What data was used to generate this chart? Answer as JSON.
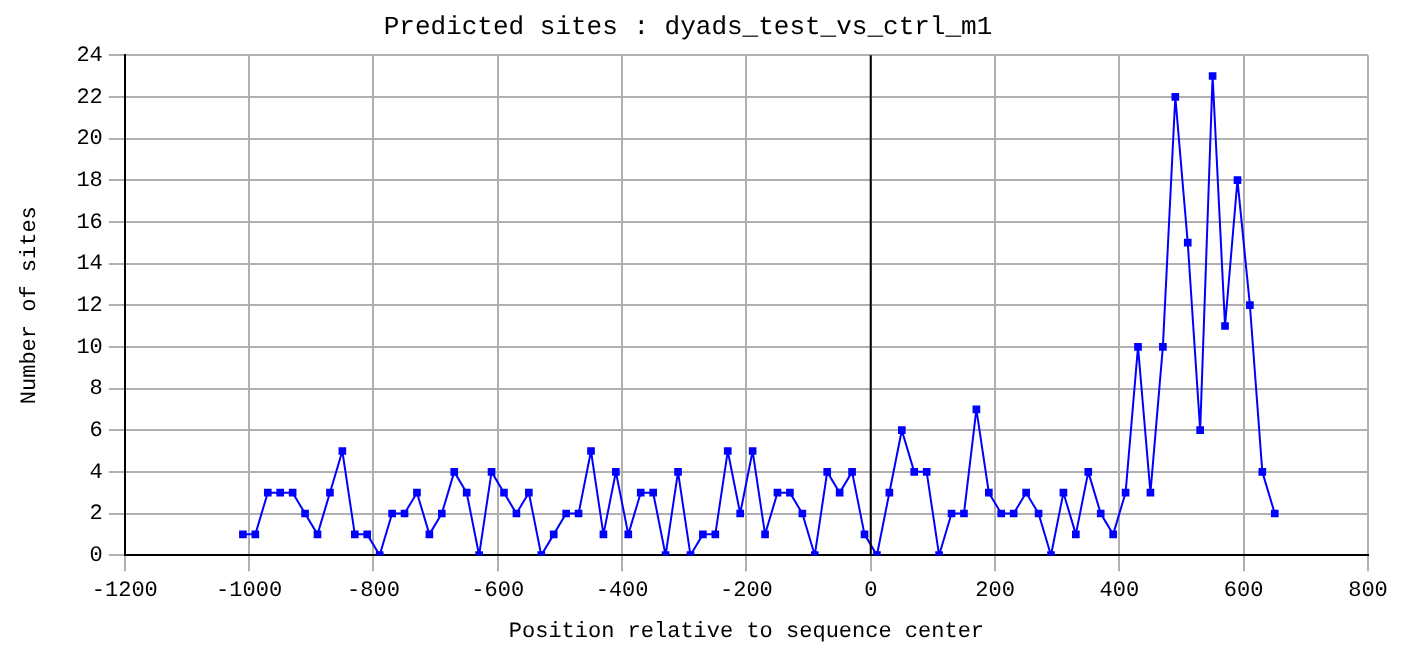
{
  "chart_data": {
    "type": "line",
    "title": "Predicted sites : dyads_test_vs_ctrl_m1",
    "xlabel": "Position relative to sequence center",
    "ylabel": "Number of sites",
    "x": [
      -1010,
      -990,
      -970,
      -950,
      -930,
      -910,
      -890,
      -870,
      -850,
      -830,
      -810,
      -790,
      -770,
      -750,
      -730,
      -710,
      -690,
      -670,
      -650,
      -630,
      -610,
      -590,
      -570,
      -550,
      -530,
      -510,
      -490,
      -470,
      -450,
      -430,
      -410,
      -390,
      -370,
      -350,
      -330,
      -310,
      -290,
      -270,
      -250,
      -230,
      -210,
      -190,
      -170,
      -150,
      -130,
      -110,
      -90,
      -70,
      -50,
      -30,
      -10,
      10,
      30,
      50,
      70,
      90,
      110,
      130,
      150,
      170,
      190,
      210,
      230,
      250,
      270,
      290,
      310,
      330,
      350,
      370,
      390,
      410,
      430,
      450,
      470,
      490,
      510,
      530,
      550,
      570,
      590,
      610,
      630,
      650
    ],
    "series": [
      {
        "color": "#0000ff",
        "values": [
          1,
          1,
          3,
          3,
          3,
          2,
          1,
          3,
          5,
          1,
          1,
          0,
          2,
          2,
          3,
          1,
          2,
          4,
          3,
          0,
          4,
          3,
          2,
          3,
          0,
          1,
          2,
          2,
          5,
          1,
          4,
          1,
          3,
          3,
          0,
          4,
          0,
          1,
          1,
          5,
          2,
          5,
          1,
          3,
          3,
          2,
          0,
          4,
          3,
          4,
          1,
          0,
          3,
          6,
          4,
          4,
          0,
          2,
          2,
          7,
          3,
          2,
          2,
          3,
          2,
          0,
          3,
          1,
          4,
          2,
          1,
          3,
          10,
          3,
          10,
          22,
          15,
          6,
          23,
          11,
          18,
          12,
          4,
          2
        ]
      }
    ],
    "xlim": [
      -1200,
      800
    ],
    "xticks": [
      -1200,
      -1000,
      -800,
      -600,
      -400,
      -200,
      0,
      200,
      400,
      600,
      800
    ],
    "ylim": [
      0,
      24
    ],
    "yticks": [
      0,
      2,
      4,
      6,
      8,
      10,
      12,
      14,
      16,
      18,
      20,
      22,
      24
    ],
    "ref_lines": [
      {
        "axis": "x",
        "value": 0,
        "color": "#000000"
      }
    ],
    "grid": true,
    "legend": false,
    "marker": "square",
    "line_style": "solid"
  }
}
